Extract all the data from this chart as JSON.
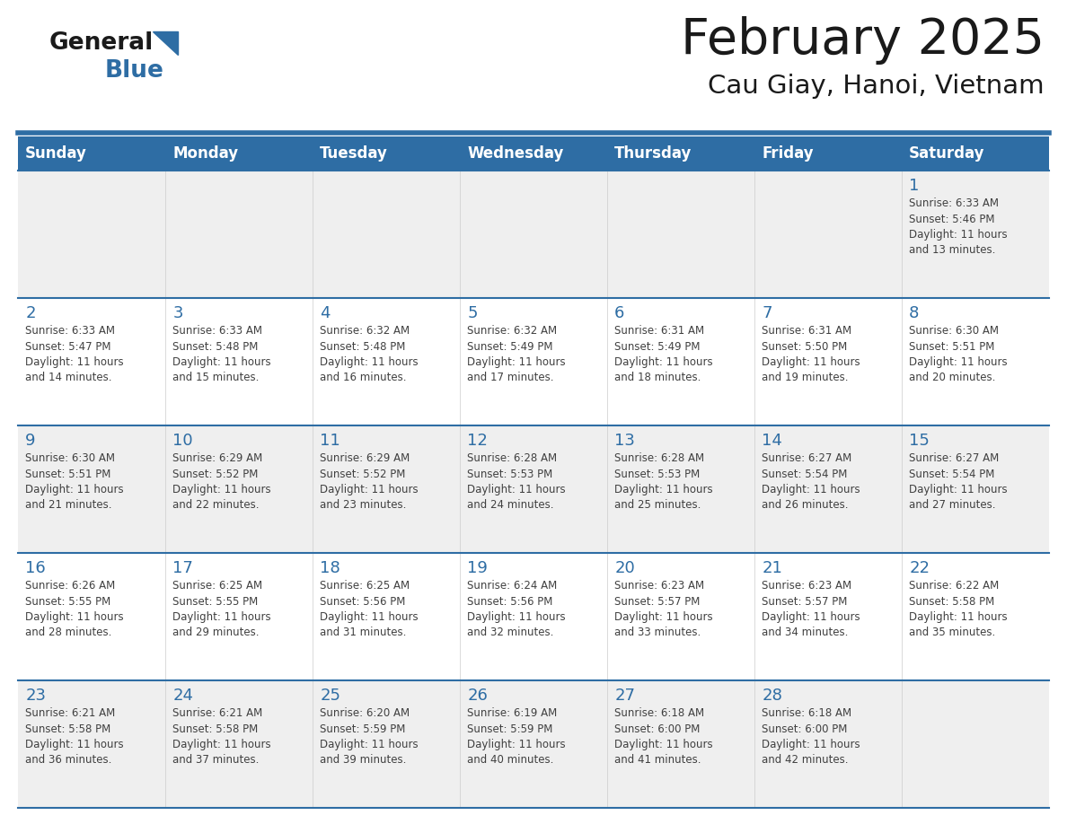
{
  "title": "February 2025",
  "subtitle": "Cau Giay, Hanoi, Vietnam",
  "header_bg": "#2E6DA4",
  "header_text_color": "#FFFFFF",
  "cell_bg_light": "#EFEFEF",
  "cell_bg_white": "#FFFFFF",
  "grid_line_color": "#2E6DA4",
  "day_number_color": "#2E6DA4",
  "info_text_color": "#404040",
  "days_of_week": [
    "Sunday",
    "Monday",
    "Tuesday",
    "Wednesday",
    "Thursday",
    "Friday",
    "Saturday"
  ],
  "weeks": [
    [
      {
        "day": null,
        "info": null
      },
      {
        "day": null,
        "info": null
      },
      {
        "day": null,
        "info": null
      },
      {
        "day": null,
        "info": null
      },
      {
        "day": null,
        "info": null
      },
      {
        "day": null,
        "info": null
      },
      {
        "day": "1",
        "info": "Sunrise: 6:33 AM\nSunset: 5:46 PM\nDaylight: 11 hours\nand 13 minutes."
      }
    ],
    [
      {
        "day": "2",
        "info": "Sunrise: 6:33 AM\nSunset: 5:47 PM\nDaylight: 11 hours\nand 14 minutes."
      },
      {
        "day": "3",
        "info": "Sunrise: 6:33 AM\nSunset: 5:48 PM\nDaylight: 11 hours\nand 15 minutes."
      },
      {
        "day": "4",
        "info": "Sunrise: 6:32 AM\nSunset: 5:48 PM\nDaylight: 11 hours\nand 16 minutes."
      },
      {
        "day": "5",
        "info": "Sunrise: 6:32 AM\nSunset: 5:49 PM\nDaylight: 11 hours\nand 17 minutes."
      },
      {
        "day": "6",
        "info": "Sunrise: 6:31 AM\nSunset: 5:49 PM\nDaylight: 11 hours\nand 18 minutes."
      },
      {
        "day": "7",
        "info": "Sunrise: 6:31 AM\nSunset: 5:50 PM\nDaylight: 11 hours\nand 19 minutes."
      },
      {
        "day": "8",
        "info": "Sunrise: 6:30 AM\nSunset: 5:51 PM\nDaylight: 11 hours\nand 20 minutes."
      }
    ],
    [
      {
        "day": "9",
        "info": "Sunrise: 6:30 AM\nSunset: 5:51 PM\nDaylight: 11 hours\nand 21 minutes."
      },
      {
        "day": "10",
        "info": "Sunrise: 6:29 AM\nSunset: 5:52 PM\nDaylight: 11 hours\nand 22 minutes."
      },
      {
        "day": "11",
        "info": "Sunrise: 6:29 AM\nSunset: 5:52 PM\nDaylight: 11 hours\nand 23 minutes."
      },
      {
        "day": "12",
        "info": "Sunrise: 6:28 AM\nSunset: 5:53 PM\nDaylight: 11 hours\nand 24 minutes."
      },
      {
        "day": "13",
        "info": "Sunrise: 6:28 AM\nSunset: 5:53 PM\nDaylight: 11 hours\nand 25 minutes."
      },
      {
        "day": "14",
        "info": "Sunrise: 6:27 AM\nSunset: 5:54 PM\nDaylight: 11 hours\nand 26 minutes."
      },
      {
        "day": "15",
        "info": "Sunrise: 6:27 AM\nSunset: 5:54 PM\nDaylight: 11 hours\nand 27 minutes."
      }
    ],
    [
      {
        "day": "16",
        "info": "Sunrise: 6:26 AM\nSunset: 5:55 PM\nDaylight: 11 hours\nand 28 minutes."
      },
      {
        "day": "17",
        "info": "Sunrise: 6:25 AM\nSunset: 5:55 PM\nDaylight: 11 hours\nand 29 minutes."
      },
      {
        "day": "18",
        "info": "Sunrise: 6:25 AM\nSunset: 5:56 PM\nDaylight: 11 hours\nand 31 minutes."
      },
      {
        "day": "19",
        "info": "Sunrise: 6:24 AM\nSunset: 5:56 PM\nDaylight: 11 hours\nand 32 minutes."
      },
      {
        "day": "20",
        "info": "Sunrise: 6:23 AM\nSunset: 5:57 PM\nDaylight: 11 hours\nand 33 minutes."
      },
      {
        "day": "21",
        "info": "Sunrise: 6:23 AM\nSunset: 5:57 PM\nDaylight: 11 hours\nand 34 minutes."
      },
      {
        "day": "22",
        "info": "Sunrise: 6:22 AM\nSunset: 5:58 PM\nDaylight: 11 hours\nand 35 minutes."
      }
    ],
    [
      {
        "day": "23",
        "info": "Sunrise: 6:21 AM\nSunset: 5:58 PM\nDaylight: 11 hours\nand 36 minutes."
      },
      {
        "day": "24",
        "info": "Sunrise: 6:21 AM\nSunset: 5:58 PM\nDaylight: 11 hours\nand 37 minutes."
      },
      {
        "day": "25",
        "info": "Sunrise: 6:20 AM\nSunset: 5:59 PM\nDaylight: 11 hours\nand 39 minutes."
      },
      {
        "day": "26",
        "info": "Sunrise: 6:19 AM\nSunset: 5:59 PM\nDaylight: 11 hours\nand 40 minutes."
      },
      {
        "day": "27",
        "info": "Sunrise: 6:18 AM\nSunset: 6:00 PM\nDaylight: 11 hours\nand 41 minutes."
      },
      {
        "day": "28",
        "info": "Sunrise: 6:18 AM\nSunset: 6:00 PM\nDaylight: 11 hours\nand 42 minutes."
      },
      {
        "day": null,
        "info": null
      }
    ]
  ],
  "logo_text_general": "General",
  "logo_text_blue": "Blue",
  "logo_color_general": "#1a1a1a",
  "logo_color_blue": "#2E6DA4",
  "logo_triangle_color": "#2E6DA4"
}
